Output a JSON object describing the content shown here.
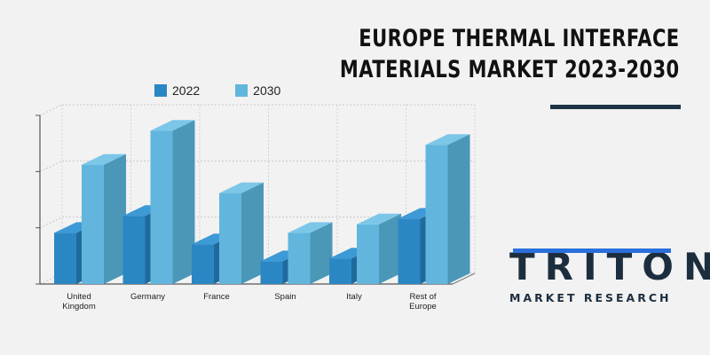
{
  "title_lines": [
    "EUROPE THERMAL INTERFACE",
    "MATERIALS MARKET 2023-2030"
  ],
  "legend": [
    {
      "label": "2022",
      "color": "#2a87c4"
    },
    {
      "label": "2030",
      "color": "#62b6dd"
    }
  ],
  "chart_data": {
    "type": "bar",
    "categories": [
      [
        "United",
        "Kingdom"
      ],
      [
        "Germany"
      ],
      [
        "France"
      ],
      [
        "Spain"
      ],
      [
        "Italy"
      ],
      [
        "Rest of",
        "Europe"
      ]
    ],
    "series": [
      {
        "name": "2022",
        "values": [
          0.9,
          1.2,
          0.7,
          0.4,
          0.45,
          1.15
        ]
      },
      {
        "name": "2030",
        "values": [
          2.1,
          2.7,
          1.6,
          0.9,
          1.05,
          2.45
        ]
      }
    ],
    "ylim": [
      0,
      3.0
    ],
    "grid": true,
    "legend_position": "top"
  },
  "logo": {
    "word": "TRITON",
    "sub": "MARKET RESEARCH"
  }
}
